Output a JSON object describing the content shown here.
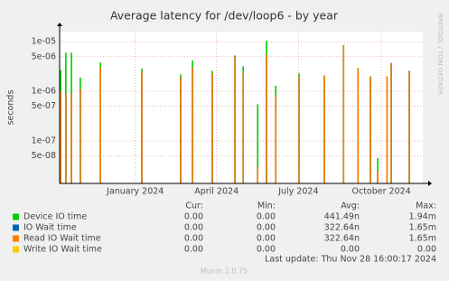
{
  "chart_data": {
    "type": "line",
    "title": "Average latency for /dev/loop6 - by year",
    "y_label": "seconds",
    "side_label": "RRDTOOL / TOBI OETIKER",
    "log_scale": true,
    "grid": true,
    "x": [
      2023.773,
      2023.789,
      2023.806,
      2023.833,
      2023.894,
      2024.02,
      2024.138,
      2024.174,
      2024.234,
      2024.303,
      2024.328,
      2024.372,
      2024.399,
      2024.427,
      2024.498,
      2024.575,
      2024.633,
      2024.677,
      2024.715,
      2024.737,
      2024.765,
      2024.778,
      2024.833
    ],
    "xlim": [
      2023.77,
      2024.874
    ],
    "xticks": [
      {
        "value": 2024.0,
        "label": "January 2024"
      },
      {
        "value": 2024.247,
        "label": "April 2024"
      },
      {
        "value": 2024.496,
        "label": "July 2024"
      },
      {
        "value": 2024.748,
        "label": "October 2024"
      }
    ],
    "ylim": [
      1.4e-08,
      1.6e-05
    ],
    "yticks": [
      {
        "value": 1e-05,
        "label": "1e-05"
      },
      {
        "value": 5e-06,
        "label": "5e-06"
      },
      {
        "value": 1e-06,
        "label": "1e-06"
      },
      {
        "value": 5e-07,
        "label": "5e-07"
      },
      {
        "value": 1e-07,
        "label": "1e-07"
      },
      {
        "value": 5e-08,
        "label": "5e-08"
      }
    ],
    "series": [
      {
        "name": "Device IO time",
        "color": "#00cc00",
        "values": [
          2.7e-06,
          6e-06,
          6e-06,
          1.9e-06,
          3.8e-06,
          2.9e-06,
          2.2e-06,
          4.2e-06,
          2.6e-06,
          5.3e-06,
          3.2e-06,
          5.5e-07,
          1.05e-05,
          1.3e-06,
          2.3e-06,
          2.1e-06,
          8.5e-06,
          3e-06,
          2e-06,
          4.5e-08,
          2e-06,
          3.7e-06,
          2.6e-06
        ]
      },
      {
        "name": "IO Wait time",
        "color": "#0066b3",
        "values": [
          1e-06,
          9e-07,
          9e-07,
          1.1e-06,
          3e-06,
          2.5e-06,
          1.9e-06,
          3e-06,
          2.3e-06,
          5e-06,
          2.4e-06,
          3e-08,
          5.5e-06,
          8e-07,
          2e-06,
          2.1e-06,
          8.5e-06,
          3e-06,
          2e-06,
          2.5e-08,
          2e-06,
          3.7e-06,
          2.6e-06
        ]
      },
      {
        "name": "Read IO Wait time",
        "color": "#ff8000",
        "values": [
          1e-06,
          9e-07,
          9e-07,
          1.1e-06,
          3e-06,
          2.5e-06,
          1.9e-06,
          3e-06,
          2.3e-06,
          5e-06,
          2.4e-06,
          3e-08,
          5.5e-06,
          8e-07,
          2e-06,
          2.1e-06,
          8.5e-06,
          3e-06,
          2e-06,
          2.5e-08,
          2e-06,
          3.7e-06,
          2.6e-06
        ]
      },
      {
        "name": "Write IO Wait time",
        "color": "#ffcc00",
        "values": [
          0,
          0,
          0,
          0,
          0,
          0,
          0,
          0,
          0,
          0,
          0,
          0,
          0,
          0,
          0,
          0,
          0,
          0,
          0,
          0,
          0,
          0,
          0
        ]
      }
    ],
    "legend_table": {
      "headers": [
        "Cur:",
        "Min:",
        "Avg:",
        "Max:"
      ],
      "rows": [
        [
          "0.00",
          "0.00",
          "441.49n",
          "1.94m"
        ],
        [
          "0.00",
          "0.00",
          "322.64n",
          "1.65m"
        ],
        [
          "0.00",
          "0.00",
          "322.64n",
          "1.65m"
        ],
        [
          "0.00",
          "0.00",
          "0.00",
          "0.00"
        ]
      ]
    },
    "last_update": "Last update: Thu Nov 28 16:00:17 2024",
    "footer": "Munin 2.0.75"
  }
}
